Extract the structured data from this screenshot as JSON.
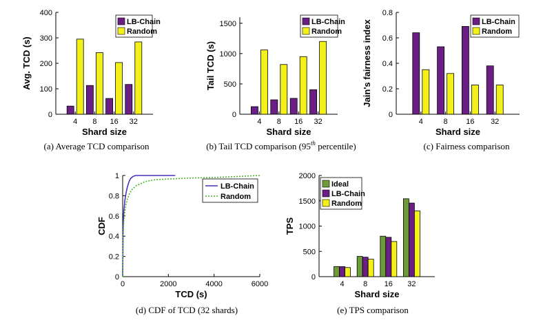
{
  "colors": {
    "lbchain": "#6b1e83",
    "random": "#f3f01a",
    "ideal": "#6f9a3a",
    "cdf_lbchain": "#4b2fbf",
    "cdf_random": "#4caf2a"
  },
  "chart_data": [
    {
      "id": "a",
      "type": "bar",
      "categories": [
        "4",
        "8",
        "16",
        "32"
      ],
      "series": [
        {
          "name": "LB-Chain",
          "values": [
            32,
            113,
            62,
            117
          ]
        },
        {
          "name": "Random",
          "values": [
            295,
            242,
            203,
            284
          ]
        }
      ],
      "xlabel": "Shard size",
      "ylabel": "Avg. TCD (s)",
      "ylim": [
        0,
        400
      ],
      "yticks": [
        "0",
        "100",
        "200",
        "300",
        "400"
      ],
      "legend": "top-right",
      "grid": false,
      "caption": "(a) Average TCD comparison"
    },
    {
      "id": "b",
      "type": "bar",
      "categories": [
        "4",
        "8",
        "16",
        "32"
      ],
      "series": [
        {
          "name": "LB-Chain",
          "values": [
            125,
            238,
            262,
            405
          ]
        },
        {
          "name": "Random",
          "values": [
            1060,
            820,
            950,
            1200
          ]
        }
      ],
      "xlabel": "Shard size",
      "ylabel": "Tail TCD (s)",
      "ylim": [
        0,
        1600
      ],
      "yticks": [
        "0",
        "500",
        "1000",
        "1500"
      ],
      "legend": "top-right",
      "grid": false,
      "caption_pre": "(b) Tail TCD comparison (95",
      "caption_sup": "th",
      "caption_post": " percentile)"
    },
    {
      "id": "c",
      "type": "bar",
      "categories": [
        "4",
        "8",
        "16",
        "32"
      ],
      "series": [
        {
          "name": "LB-Chain",
          "values": [
            0.64,
            0.53,
            0.69,
            0.38
          ]
        },
        {
          "name": "Random",
          "values": [
            0.35,
            0.32,
            0.23,
            0.23
          ]
        }
      ],
      "xlabel": "Shard size",
      "ylabel": "Jain's fairness index",
      "ylim": [
        0,
        0.8
      ],
      "yticks": [
        "0",
        "0.2",
        "0.4",
        "0.6",
        "0.8"
      ],
      "legend": "top-right",
      "grid": false,
      "caption": "(c) Fairness comparison"
    },
    {
      "id": "d",
      "type": "line",
      "series": [
        {
          "name": "LB-Chain",
          "style": "solid",
          "x": [
            0,
            20,
            50,
            100,
            150,
            200,
            250,
            300,
            350,
            400,
            450,
            500,
            550,
            600,
            700,
            1000,
            1500,
            2300
          ],
          "y": [
            0,
            0.5,
            0.65,
            0.76,
            0.83,
            0.88,
            0.92,
            0.95,
            0.97,
            0.98,
            0.99,
            0.995,
            0.998,
            1,
            1,
            1,
            1,
            1
          ]
        },
        {
          "name": "Random",
          "style": "dotted",
          "x": [
            0,
            20,
            50,
            100,
            150,
            200,
            300,
            400,
            500,
            600,
            800,
            1000,
            1200,
            1500,
            2000,
            2500,
            3000,
            4000,
            5000,
            6000
          ],
          "y": [
            0,
            0.42,
            0.56,
            0.65,
            0.72,
            0.76,
            0.82,
            0.86,
            0.88,
            0.9,
            0.92,
            0.94,
            0.95,
            0.96,
            0.965,
            0.97,
            0.975,
            0.98,
            0.99,
            1
          ]
        }
      ],
      "xlabel": "TCD (s)",
      "ylabel": "CDF",
      "xlim": [
        0,
        6000
      ],
      "ylim": [
        0,
        1
      ],
      "xticks": [
        "0",
        "2000",
        "4000",
        "6000"
      ],
      "yticks": [
        "0",
        "0.2",
        "0.4",
        "0.6",
        "0.8",
        "1"
      ],
      "legend": "top-right",
      "grid": false,
      "caption": "(d) CDF of TCD (32 shards)"
    },
    {
      "id": "e",
      "type": "bar",
      "categories": [
        "4",
        "8",
        "16",
        "32"
      ],
      "series": [
        {
          "name": "Ideal",
          "values": [
            200,
            400,
            800,
            1540
          ]
        },
        {
          "name": "LB-Chain",
          "values": [
            198,
            385,
            778,
            1455
          ]
        },
        {
          "name": "Random",
          "values": [
            180,
            345,
            695,
            1300
          ]
        }
      ],
      "xlabel": "Shard size",
      "ylabel": "TPS",
      "ylim": [
        0,
        2000
      ],
      "yticks": [
        "0",
        "500",
        "1000",
        "1500",
        "2000"
      ],
      "legend": "top-left",
      "grid": false,
      "caption": "(e) TPS comparison"
    }
  ]
}
